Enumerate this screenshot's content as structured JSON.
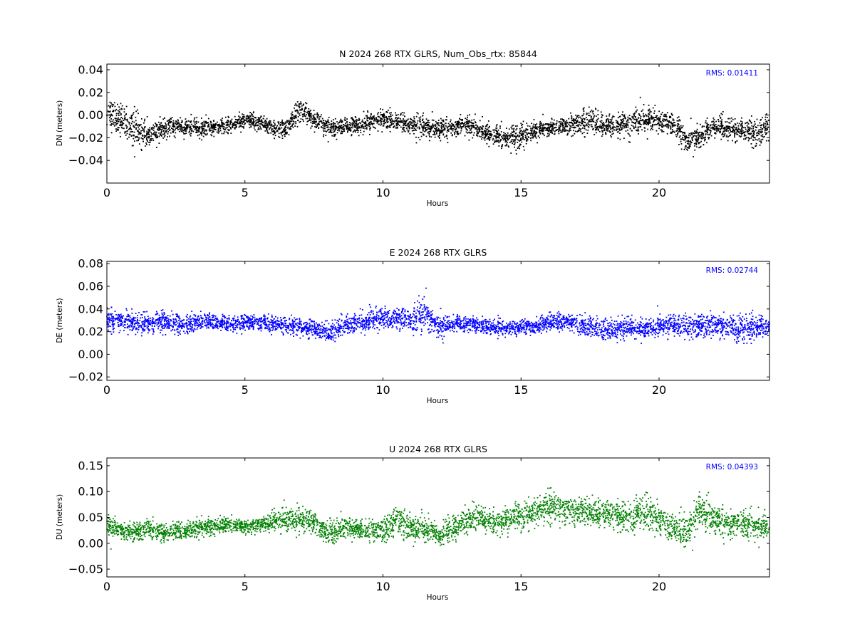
{
  "chart_data": [
    {
      "type": "scatter",
      "title": "N 2024 268 RTX  GLRS, Num_Obs_rtx: 85844",
      "xlabel": "Hours",
      "ylabel": "DN (meters)",
      "xlim": [
        0,
        24
      ],
      "ylim": [
        -0.06,
        0.045
      ],
      "xticks": [
        0,
        5,
        10,
        15,
        20
      ],
      "yticks": [
        -0.04,
        -0.02,
        0.0,
        0.02,
        0.04
      ],
      "ytick_labels": [
        "−0.04",
        "−0.02",
        "0.00",
        "0.02",
        "0.04"
      ],
      "annotation": "RMS:  0.01411",
      "color": "#000000",
      "annotation_color": "#0000ff",
      "grid": false,
      "series": [
        {
          "x": [
            0,
            0.5,
            1,
            1.5,
            2,
            2.5,
            3,
            3.5,
            4,
            4.5,
            5,
            5.5,
            6,
            6.5,
            7,
            7.5,
            8,
            8.5,
            9,
            9.5,
            10,
            10.5,
            11,
            11.5,
            12,
            12.5,
            13,
            13.5,
            14,
            14.5,
            15,
            15.5,
            16,
            16.5,
            17,
            17.5,
            18,
            18.5,
            19,
            19.5,
            20,
            20.5,
            21,
            21.5,
            22,
            22.5,
            23,
            23.5,
            24
          ],
          "y": [
            0.002,
            -0.004,
            -0.012,
            -0.018,
            -0.013,
            -0.01,
            -0.011,
            -0.012,
            -0.01,
            -0.009,
            -0.004,
            -0.006,
            -0.013,
            -0.012,
            0.005,
            -0.004,
            -0.011,
            -0.01,
            -0.009,
            -0.007,
            -0.004,
            -0.006,
            -0.009,
            -0.012,
            -0.012,
            -0.011,
            -0.008,
            -0.012,
            -0.019,
            -0.02,
            -0.018,
            -0.015,
            -0.011,
            -0.01,
            -0.008,
            -0.005,
            -0.01,
            -0.009,
            -0.007,
            -0.004,
            -0.005,
            -0.008,
            -0.022,
            -0.02,
            -0.01,
            -0.012,
            -0.014,
            -0.016,
            -0.011
          ],
          "spread": [
            0.015,
            0.016,
            0.017,
            0.013,
            0.01,
            0.009,
            0.009,
            0.009,
            0.008,
            0.008,
            0.008,
            0.008,
            0.009,
            0.01,
            0.011,
            0.009,
            0.009,
            0.009,
            0.009,
            0.01,
            0.011,
            0.011,
            0.01,
            0.013,
            0.01,
            0.009,
            0.009,
            0.01,
            0.012,
            0.013,
            0.012,
            0.01,
            0.008,
            0.009,
            0.011,
            0.014,
            0.012,
            0.012,
            0.013,
            0.013,
            0.012,
            0.011,
            0.013,
            0.014,
            0.012,
            0.011,
            0.012,
            0.014,
            0.013
          ]
        }
      ]
    },
    {
      "type": "scatter",
      "title": "E 2024 268 RTX  GLRS",
      "xlabel": "Hours",
      "ylabel": "DE (meters)",
      "xlim": [
        0,
        24
      ],
      "ylim": [
        -0.023,
        0.082
      ],
      "xticks": [
        0,
        5,
        10,
        15,
        20
      ],
      "yticks": [
        -0.02,
        0.0,
        0.02,
        0.04,
        0.06,
        0.08
      ],
      "ytick_labels": [
        "−0.02",
        "0.00",
        "0.02",
        "0.04",
        "0.06",
        "0.08"
      ],
      "annotation": "RMS:  0.02744",
      "color": "#0000ff",
      "annotation_color": "#0000ff",
      "grid": false,
      "series": [
        {
          "x": [
            0,
            0.5,
            1,
            1.5,
            2,
            2.5,
            3,
            3.5,
            4,
            4.5,
            5,
            5.5,
            6,
            6.5,
            7,
            7.5,
            8,
            8.5,
            9,
            9.5,
            10,
            10.5,
            11,
            11.5,
            12,
            12.5,
            13,
            13.5,
            14,
            14.5,
            15,
            15.5,
            16,
            16.5,
            17,
            17.5,
            18,
            18.5,
            19,
            19.5,
            20,
            20.5,
            21,
            21.5,
            22,
            22.5,
            23,
            23.5,
            24
          ],
          "y": [
            0.03,
            0.03,
            0.028,
            0.026,
            0.03,
            0.026,
            0.027,
            0.029,
            0.028,
            0.027,
            0.028,
            0.028,
            0.027,
            0.025,
            0.024,
            0.022,
            0.019,
            0.024,
            0.028,
            0.03,
            0.032,
            0.031,
            0.03,
            0.036,
            0.024,
            0.026,
            0.027,
            0.025,
            0.024,
            0.023,
            0.024,
            0.025,
            0.028,
            0.029,
            0.027,
            0.024,
            0.022,
            0.022,
            0.023,
            0.022,
            0.025,
            0.026,
            0.024,
            0.024,
            0.026,
            0.025,
            0.023,
            0.024,
            0.026
          ],
          "spread": [
            0.011,
            0.01,
            0.01,
            0.01,
            0.012,
            0.01,
            0.009,
            0.009,
            0.008,
            0.008,
            0.008,
            0.008,
            0.008,
            0.008,
            0.009,
            0.009,
            0.01,
            0.011,
            0.011,
            0.011,
            0.011,
            0.011,
            0.011,
            0.018,
            0.011,
            0.009,
            0.008,
            0.008,
            0.008,
            0.008,
            0.008,
            0.008,
            0.008,
            0.008,
            0.009,
            0.01,
            0.01,
            0.01,
            0.011,
            0.01,
            0.01,
            0.011,
            0.012,
            0.012,
            0.012,
            0.013,
            0.013,
            0.012,
            0.012
          ]
        }
      ]
    },
    {
      "type": "scatter",
      "title": "U 2024 268 RTX  GLRS",
      "xlabel": "Hours",
      "ylabel": "DU (meters)",
      "xlim": [
        0,
        24
      ],
      "ylim": [
        -0.065,
        0.165
      ],
      "xticks": [
        0,
        5,
        10,
        15,
        20
      ],
      "yticks": [
        -0.05,
        0.0,
        0.05,
        0.1,
        0.15
      ],
      "ytick_labels": [
        "−0.05",
        "0.00",
        "0.05",
        "0.10",
        "0.15"
      ],
      "annotation": "RMS:  0.04393",
      "color": "#008000",
      "annotation_color": "#0000ff",
      "grid": false,
      "series": [
        {
          "x": [
            0,
            0.5,
            1,
            1.5,
            2,
            2.5,
            3,
            3.5,
            4,
            4.5,
            5,
            5.5,
            6,
            6.5,
            7,
            7.5,
            8,
            8.5,
            9,
            9.5,
            10,
            10.5,
            11,
            11.5,
            12,
            12.5,
            13,
            13.5,
            14,
            14.5,
            15,
            15.5,
            16,
            16.5,
            17,
            17.5,
            18,
            18.5,
            19,
            19.5,
            20,
            20.5,
            21,
            21.5,
            22,
            22.5,
            23,
            23.5,
            24
          ],
          "y": [
            0.035,
            0.025,
            0.022,
            0.028,
            0.02,
            0.024,
            0.026,
            0.03,
            0.034,
            0.036,
            0.032,
            0.035,
            0.042,
            0.045,
            0.048,
            0.04,
            0.02,
            0.028,
            0.03,
            0.025,
            0.025,
            0.045,
            0.03,
            0.03,
            0.015,
            0.03,
            0.045,
            0.048,
            0.04,
            0.045,
            0.05,
            0.06,
            0.07,
            0.065,
            0.06,
            0.062,
            0.058,
            0.055,
            0.05,
            0.06,
            0.045,
            0.03,
            0.02,
            0.06,
            0.045,
            0.04,
            0.038,
            0.035,
            0.035
          ],
          "spread": [
            0.022,
            0.02,
            0.02,
            0.022,
            0.02,
            0.02,
            0.02,
            0.02,
            0.018,
            0.018,
            0.016,
            0.016,
            0.02,
            0.025,
            0.03,
            0.025,
            0.028,
            0.024,
            0.02,
            0.022,
            0.028,
            0.035,
            0.03,
            0.03,
            0.025,
            0.028,
            0.026,
            0.026,
            0.026,
            0.026,
            0.028,
            0.03,
            0.04,
            0.035,
            0.028,
            0.028,
            0.03,
            0.035,
            0.04,
            0.04,
            0.035,
            0.03,
            0.04,
            0.04,
            0.032,
            0.03,
            0.03,
            0.03,
            0.03
          ]
        }
      ]
    }
  ]
}
